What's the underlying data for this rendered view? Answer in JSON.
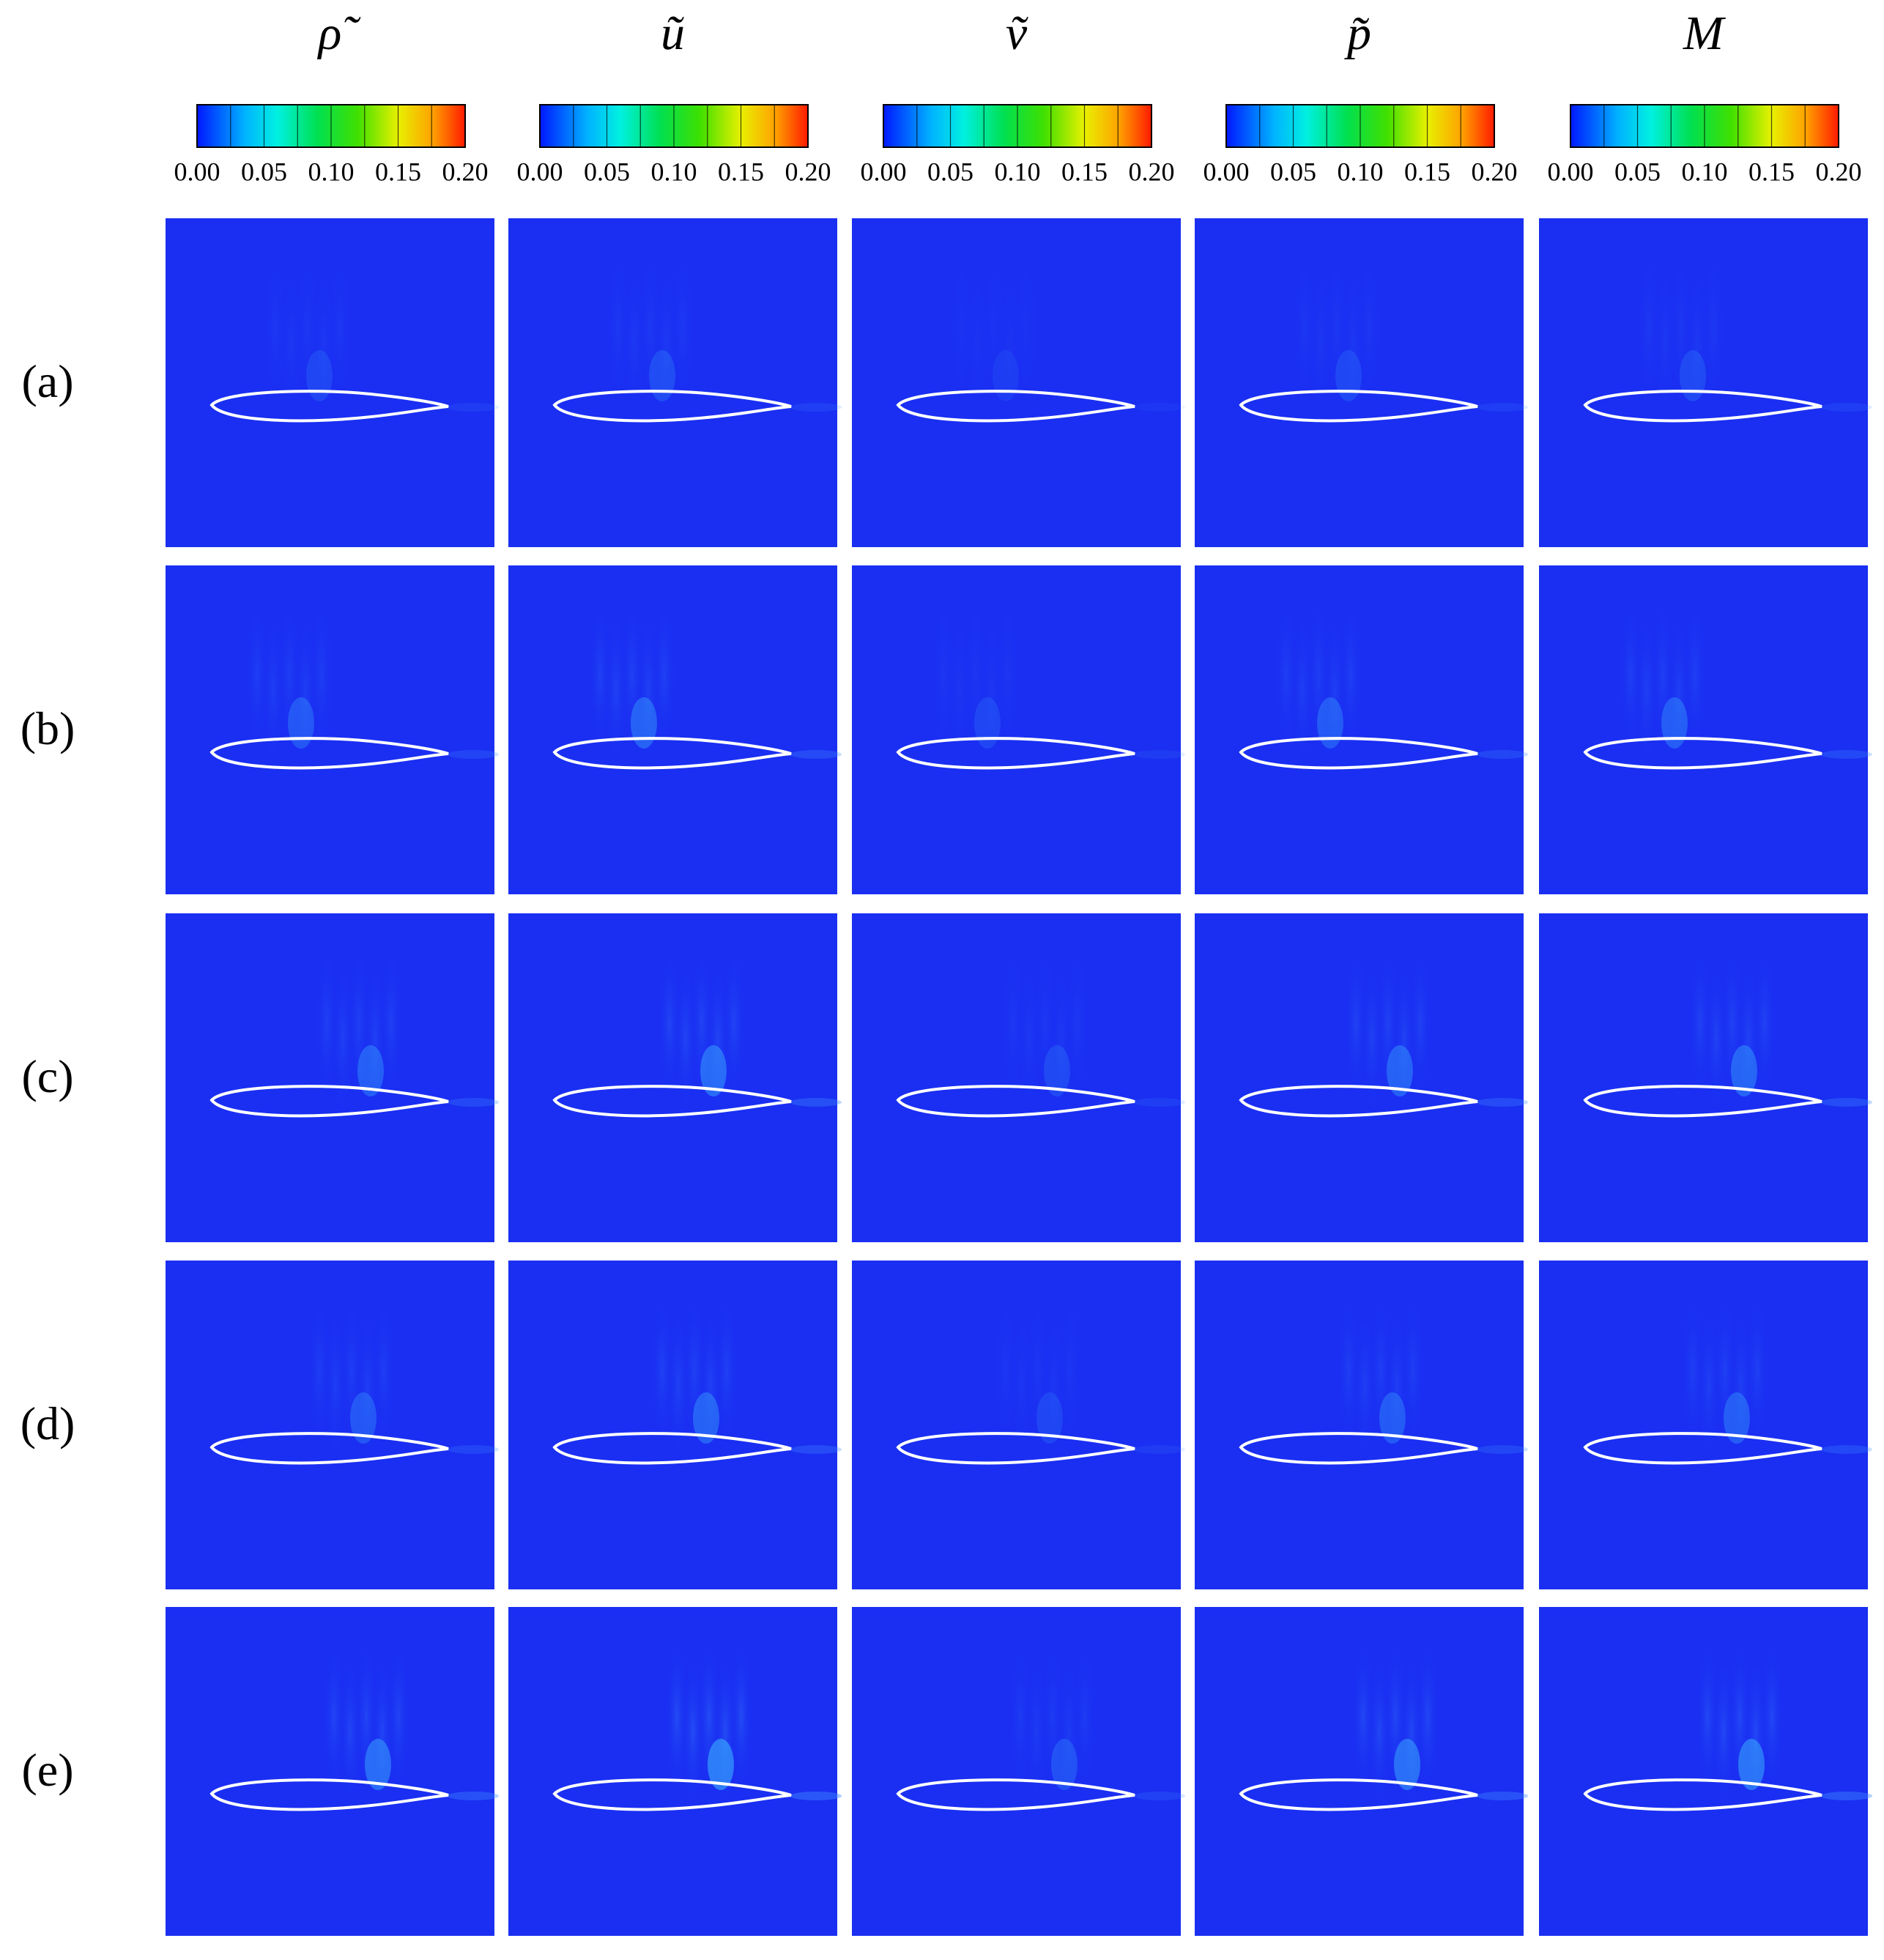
{
  "columns": [
    {
      "label": "ρ̃",
      "colorbar_ticks": [
        "0.00",
        "0.05",
        "0.10",
        "0.15",
        "0.20"
      ]
    },
    {
      "label": "ũ",
      "colorbar_ticks": [
        "0.00",
        "0.05",
        "0.10",
        "0.15",
        "0.20"
      ]
    },
    {
      "label": "ṽ",
      "colorbar_ticks": [
        "0.00",
        "0.05",
        "0.10",
        "0.15",
        "0.20"
      ]
    },
    {
      "label": "p̃",
      "colorbar_ticks": [
        "0.00",
        "0.05",
        "0.10",
        "0.15",
        "0.20"
      ]
    },
    {
      "label": "M",
      "colorbar_ticks": [
        "0.00",
        "0.05",
        "0.10",
        "0.15",
        "0.20"
      ]
    }
  ],
  "rows": [
    "(a)",
    "(b)",
    "(c)",
    "(d)",
    "(e)"
  ]
}
